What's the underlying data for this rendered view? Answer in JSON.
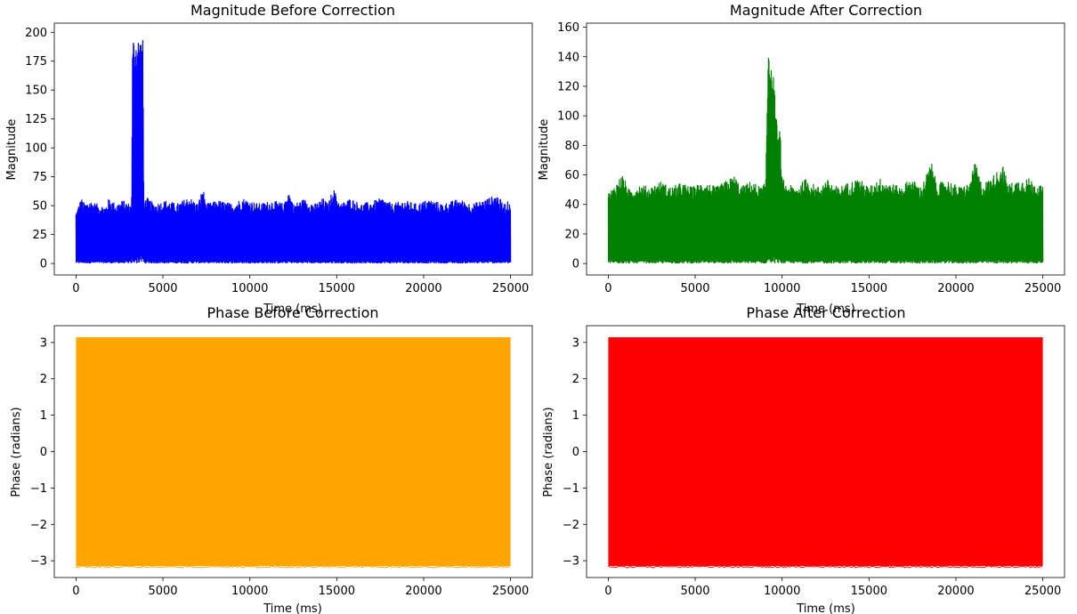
{
  "chart_data": [
    {
      "type": "line",
      "title": "Magnitude Before Correction",
      "xlabel": "Time (ms)",
      "ylabel": "Magnitude",
      "color": "#0000ff",
      "xlim": [
        -1250,
        26250
      ],
      "ylim": [
        -9.9,
        207.9
      ],
      "xticks": [
        0,
        5000,
        10000,
        15000,
        20000,
        25000
      ],
      "yticks": [
        0,
        25,
        50,
        75,
        100,
        125,
        150,
        175,
        200
      ],
      "grid": false,
      "series": [
        {
          "x_range": [
            0,
            25000
          ],
          "envelope_points": [
            [
              0,
              45
            ],
            [
              300,
              57
            ],
            [
              500,
              52
            ],
            [
              800,
              55
            ],
            [
              1200,
              52
            ],
            [
              1700,
              50
            ],
            [
              1900,
              57
            ],
            [
              2300,
              52
            ],
            [
              2700,
              55
            ],
            [
              3100,
              52
            ],
            [
              3200,
              58
            ],
            [
              3250,
              185
            ],
            [
              3300,
              197
            ],
            [
              3500,
              198
            ],
            [
              3700,
              197
            ],
            [
              3850,
              194
            ],
            [
              3900,
              55
            ],
            [
              4100,
              57
            ],
            [
              4500,
              52
            ],
            [
              5200,
              55
            ],
            [
              5800,
              52
            ],
            [
              6500,
              58
            ],
            [
              7000,
              52
            ],
            [
              7300,
              66
            ],
            [
              7500,
              52
            ],
            [
              8200,
              55
            ],
            [
              9000,
              52
            ],
            [
              9600,
              57
            ],
            [
              10500,
              52
            ],
            [
              11300,
              55
            ],
            [
              12000,
              52
            ],
            [
              12200,
              65
            ],
            [
              12500,
              52
            ],
            [
              13100,
              56
            ],
            [
              13800,
              52
            ],
            [
              14200,
              57
            ],
            [
              14500,
              52
            ],
            [
              14800,
              66
            ],
            [
              15200,
              52
            ],
            [
              15800,
              57
            ],
            [
              16400,
              52
            ],
            [
              17000,
              54
            ],
            [
              17600,
              57
            ],
            [
              18200,
              52
            ],
            [
              18900,
              55
            ],
            [
              19600,
              52
            ],
            [
              20300,
              56
            ],
            [
              21100,
              52
            ],
            [
              22000,
              56
            ],
            [
              22800,
              52
            ],
            [
              23400,
              55
            ],
            [
              24200,
              60
            ],
            [
              24600,
              52
            ],
            [
              25000,
              55
            ]
          ],
          "floor": 0
        }
      ]
    },
    {
      "type": "line",
      "title": "Magnitude After Correction",
      "xlabel": "Time (ms)",
      "ylabel": "Magnitude",
      "color": "#008000",
      "xlim": [
        -1250,
        26250
      ],
      "ylim": [
        -7.75,
        162.75
      ],
      "xticks": [
        0,
        5000,
        10000,
        15000,
        20000,
        25000
      ],
      "yticks": [
        0,
        20,
        40,
        60,
        80,
        100,
        120,
        140,
        160
      ],
      "grid": false,
      "series": [
        {
          "x_range": [
            0,
            25000
          ],
          "envelope_points": [
            [
              0,
              48
            ],
            [
              300,
              52
            ],
            [
              800,
              61
            ],
            [
              1200,
              50
            ],
            [
              1800,
              54
            ],
            [
              2400,
              52
            ],
            [
              3000,
              56
            ],
            [
              3600,
              52
            ],
            [
              4200,
              55
            ],
            [
              4800,
              52
            ],
            [
              5500,
              56
            ],
            [
              6200,
              52
            ],
            [
              7000,
              58
            ],
            [
              7300,
              60
            ],
            [
              7600,
              52
            ],
            [
              8200,
              56
            ],
            [
              8800,
              52
            ],
            [
              9050,
              55
            ],
            [
              9150,
              120
            ],
            [
              9200,
              155
            ],
            [
              9300,
              148
            ],
            [
              9400,
              125
            ],
            [
              9500,
              130
            ],
            [
              9600,
              110
            ],
            [
              9700,
              95
            ],
            [
              9800,
              88
            ],
            [
              9900,
              92
            ],
            [
              9950,
              60
            ],
            [
              10200,
              54
            ],
            [
              10800,
              52
            ],
            [
              11400,
              58
            ],
            [
              12000,
              52
            ],
            [
              12600,
              57
            ],
            [
              13200,
              52
            ],
            [
              13800,
              55
            ],
            [
              14400,
              58
            ],
            [
              15000,
              52
            ],
            [
              15600,
              58
            ],
            [
              16200,
              55
            ],
            [
              16800,
              52
            ],
            [
              17400,
              58
            ],
            [
              18000,
              52
            ],
            [
              18600,
              69
            ],
            [
              18900,
              54
            ],
            [
              19500,
              57
            ],
            [
              20200,
              52
            ],
            [
              20800,
              55
            ],
            [
              21100,
              69
            ],
            [
              21500,
              54
            ],
            [
              22000,
              58
            ],
            [
              22700,
              67
            ],
            [
              23000,
              54
            ],
            [
              23600,
              57
            ],
            [
              24200,
              58
            ],
            [
              25000,
              52
            ]
          ],
          "floor": 0
        }
      ]
    },
    {
      "type": "line",
      "title": "Phase Before Correction",
      "xlabel": "Time (ms)",
      "ylabel": "Phase (radians)",
      "color": "#ffa500",
      "xlim": [
        -1250,
        26250
      ],
      "ylim": [
        -3.46,
        3.46
      ],
      "xticks": [
        0,
        5000,
        10000,
        15000,
        20000,
        25000
      ],
      "yticks": [
        -3,
        -2,
        -1,
        0,
        1,
        2,
        3
      ],
      "grid": false,
      "series": [
        {
          "x_range": [
            0,
            25000
          ],
          "y_range": [
            -3.14159,
            3.14159
          ]
        }
      ]
    },
    {
      "type": "line",
      "title": "Phase After Correction",
      "xlabel": "Time (ms)",
      "ylabel": "Phase (radians)",
      "color": "#ff0000",
      "xlim": [
        -1250,
        26250
      ],
      "ylim": [
        -3.46,
        3.46
      ],
      "xticks": [
        0,
        5000,
        10000,
        15000,
        20000,
        25000
      ],
      "yticks": [
        -3,
        -2,
        -1,
        0,
        1,
        2,
        3
      ],
      "grid": false,
      "series": [
        {
          "x_range": [
            0,
            25000
          ],
          "y_range": [
            -3.14159,
            3.14159
          ]
        }
      ]
    }
  ]
}
